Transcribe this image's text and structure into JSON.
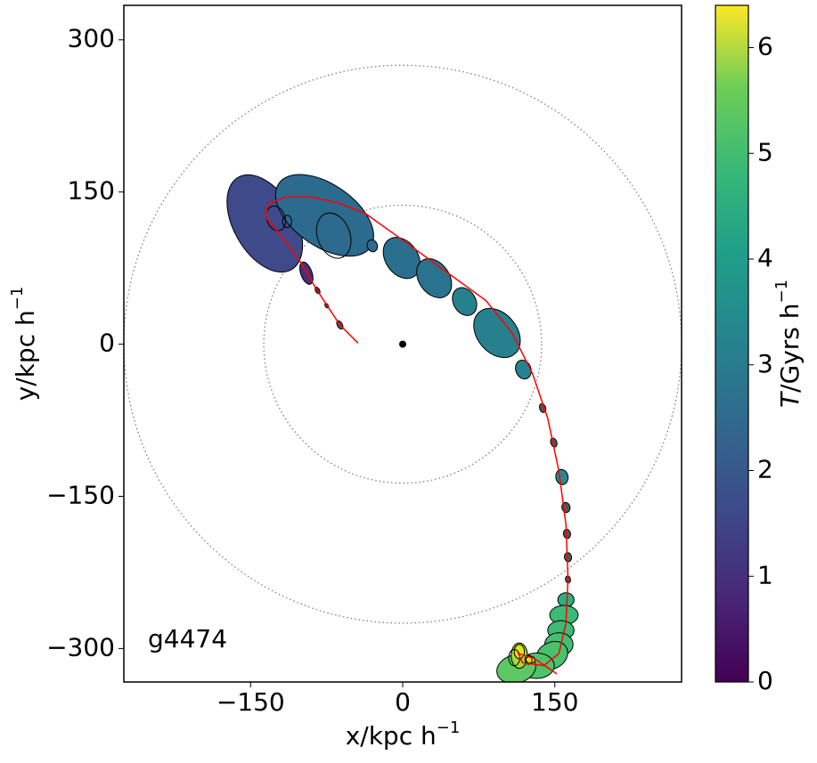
{
  "chart_data": {
    "type": "ellipse-orbit",
    "annotation": "g4474",
    "xlabel": {
      "text": "x/kpc h",
      "sup": "−1"
    },
    "ylabel": {
      "text": "y/kpc h",
      "sup": "−1"
    },
    "xlim": [
      -275,
      275
    ],
    "ylim": [
      -333,
      334
    ],
    "xticks": [
      {
        "value": -150,
        "label": "−150"
      },
      0,
      150
    ],
    "yticks": [
      {
        "value": -300,
        "label": "−300"
      },
      {
        "value": -150,
        "label": "−150"
      },
      0,
      150,
      300
    ],
    "rings": [
      137,
      275
    ],
    "ellipses": {
      "x": [
        -136,
        -77,
        -95,
        -84,
        -75,
        -62,
        -30,
        -1,
        31,
        61,
        93,
        119,
        138,
        149,
        157,
        161,
        162,
        163,
        163,
        161,
        159,
        156,
        154,
        147,
        132,
        112,
        115,
        115,
        126
      ],
      "y": [
        119,
        127,
        70,
        53,
        38,
        19,
        97,
        85,
        65,
        42,
        11,
        -25,
        -63,
        -97,
        -131,
        -161,
        -187,
        -210,
        -232,
        -252,
        -267,
        -282,
        -296,
        -307,
        -317,
        -320,
        -307,
        -303,
        -311
      ],
      "width": [
        61,
        61,
        11,
        4,
        3,
        5,
        10,
        32,
        30,
        22,
        39,
        15,
        6,
        6,
        12,
        8,
        7,
        7,
        5,
        16,
        28,
        26,
        28,
        33,
        35,
        39,
        16,
        10,
        9
      ],
      "height": [
        105,
        110,
        23,
        7,
        5,
        9,
        12,
        44,
        42,
        29,
        54,
        19,
        9,
        9,
        15,
        10,
        9,
        9,
        7,
        14,
        19,
        19,
        23,
        26,
        25,
        28,
        25,
        14,
        7
      ],
      "angle": [
        -30,
        -55,
        -20,
        -30,
        -30,
        -30,
        -20,
        -35,
        -35,
        -30,
        -40,
        -20,
        -20,
        -20,
        -10,
        -10,
        -10,
        -10,
        -10,
        0,
        0,
        0,
        0,
        -30,
        0,
        -15,
        0,
        0,
        0
      ],
      "colors": [
        "#3e4a89",
        "#2c6a8e",
        "#472d7b",
        "#444444",
        "#444444",
        "#555555",
        "#2c6a8e",
        "#2a708e",
        "#2a738e",
        "#27808e",
        "#27808e",
        "#26828e",
        "#555555",
        "#555555",
        "#26888d",
        "#555555",
        "#555555",
        "#555555",
        "#555555",
        "#2ab07f",
        "#3bbb75",
        "#3bbb75",
        "#44bf70",
        "#4ac16d",
        "#4ec36b",
        "#5cc863",
        "#a2da37",
        "#e2e418",
        "#d8e219"
      ]
    },
    "outlines": {
      "x": [
        -125,
        -114,
        -68,
        110,
        124
      ],
      "y": [
        124,
        121,
        107,
        -309,
        -311
      ],
      "width": [
        18,
        9,
        32,
        11,
        7
      ],
      "height": [
        25,
        12,
        46,
        16,
        9
      ],
      "angle": [
        -20,
        0,
        -20,
        0,
        0
      ]
    },
    "orbit": {
      "color": "#ff0000",
      "x": [
        -44,
        -62,
        -85,
        -102,
        -120,
        -135,
        -133,
        -116,
        -89,
        -63,
        -37,
        -2,
        42,
        82,
        108,
        128,
        143,
        154,
        161,
        163,
        161,
        154,
        139,
        118,
        114,
        130,
        152
      ],
      "y": [
        1,
        19,
        54,
        83,
        107,
        125,
        138,
        145,
        145,
        139,
        129,
        104,
        72,
        43,
        11,
        -29,
        -73,
        -125,
        -178,
        -231,
        -275,
        -305,
        -317,
        -314,
        -305,
        -310,
        -325
      ]
    },
    "colorbar": {
      "label": {
        "italic": "T",
        "text": "/Gyrs h",
        "sup": "−1"
      },
      "lim": [
        0,
        6.4
      ],
      "ticks": [
        0,
        1,
        2,
        3,
        4,
        5,
        6
      ]
    }
  }
}
